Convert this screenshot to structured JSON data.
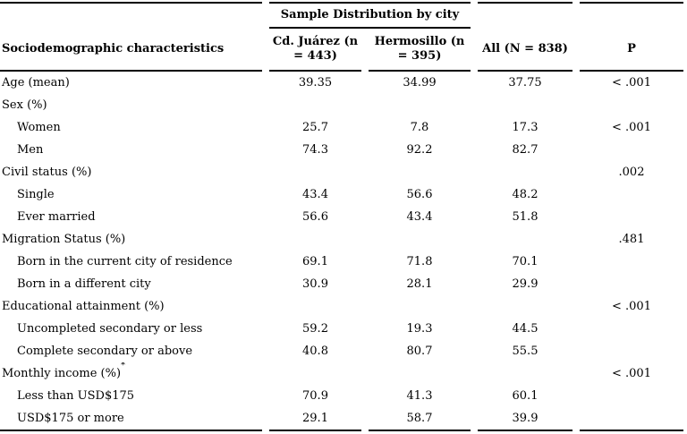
{
  "table": {
    "col1_header": "Sociodemographic characteristics",
    "group_header": "Sample Distribution by city",
    "col_headers": {
      "juarez": "Cd. Juárez (n = 443)",
      "hermosillo": "Hermosillo (n = 395)",
      "all": "All (N = 838)",
      "p": "P"
    },
    "colors": {
      "rule": "#000000",
      "text": "#000000",
      "background": "#ffffff"
    },
    "rows": [
      {
        "label": "Age (mean)",
        "indent": false,
        "sup": "",
        "values": [
          "39.35",
          "34.99",
          "37.75",
          "< .001"
        ]
      },
      {
        "label": "Sex (%)",
        "indent": false,
        "sup": "",
        "values": [
          "",
          "",
          "",
          ""
        ]
      },
      {
        "label": "Women",
        "indent": true,
        "sup": "",
        "values": [
          "25.7",
          "7.8",
          "17.3",
          "< .001"
        ]
      },
      {
        "label": "Men",
        "indent": true,
        "sup": "",
        "values": [
          "74.3",
          "92.2",
          "82.7",
          ""
        ]
      },
      {
        "label": "Civil status (%)",
        "indent": false,
        "sup": "",
        "values": [
          "",
          "",
          "",
          ".002"
        ]
      },
      {
        "label": "Single",
        "indent": true,
        "sup": "",
        "values": [
          "43.4",
          "56.6",
          "48.2",
          ""
        ]
      },
      {
        "label": "Ever married",
        "indent": true,
        "sup": "",
        "values": [
          "56.6",
          "43.4",
          "51.8",
          ""
        ]
      },
      {
        "label": "Migration Status (%)",
        "indent": false,
        "sup": "",
        "values": [
          "",
          "",
          "",
          ".481"
        ]
      },
      {
        "label": "Born in the current city of residence",
        "indent": true,
        "sup": "",
        "values": [
          "69.1",
          "71.8",
          "70.1",
          ""
        ]
      },
      {
        "label": "Born in a different city",
        "indent": true,
        "sup": "",
        "values": [
          "30.9",
          "28.1",
          "29.9",
          ""
        ]
      },
      {
        "label": "Educational attainment (%)",
        "indent": false,
        "sup": "",
        "values": [
          "",
          "",
          "",
          "< .001"
        ]
      },
      {
        "label": "Uncompleted secondary or less",
        "indent": true,
        "sup": "",
        "values": [
          "59.2",
          "19.3",
          "44.5",
          ""
        ]
      },
      {
        "label": "Complete secondary or above",
        "indent": true,
        "sup": "",
        "values": [
          "40.8",
          "80.7",
          "55.5",
          ""
        ]
      },
      {
        "label": "Monthly income (%)",
        "indent": false,
        "sup": "*",
        "values": [
          "",
          "",
          "",
          "< .001"
        ]
      },
      {
        "label": "Less than USD$175",
        "indent": true,
        "sup": "",
        "values": [
          "70.9",
          "41.3",
          "60.1",
          ""
        ]
      },
      {
        "label": "USD$175 or more",
        "indent": true,
        "sup": "",
        "values": [
          "29.1",
          "58.7",
          "39.9",
          ""
        ]
      }
    ]
  }
}
